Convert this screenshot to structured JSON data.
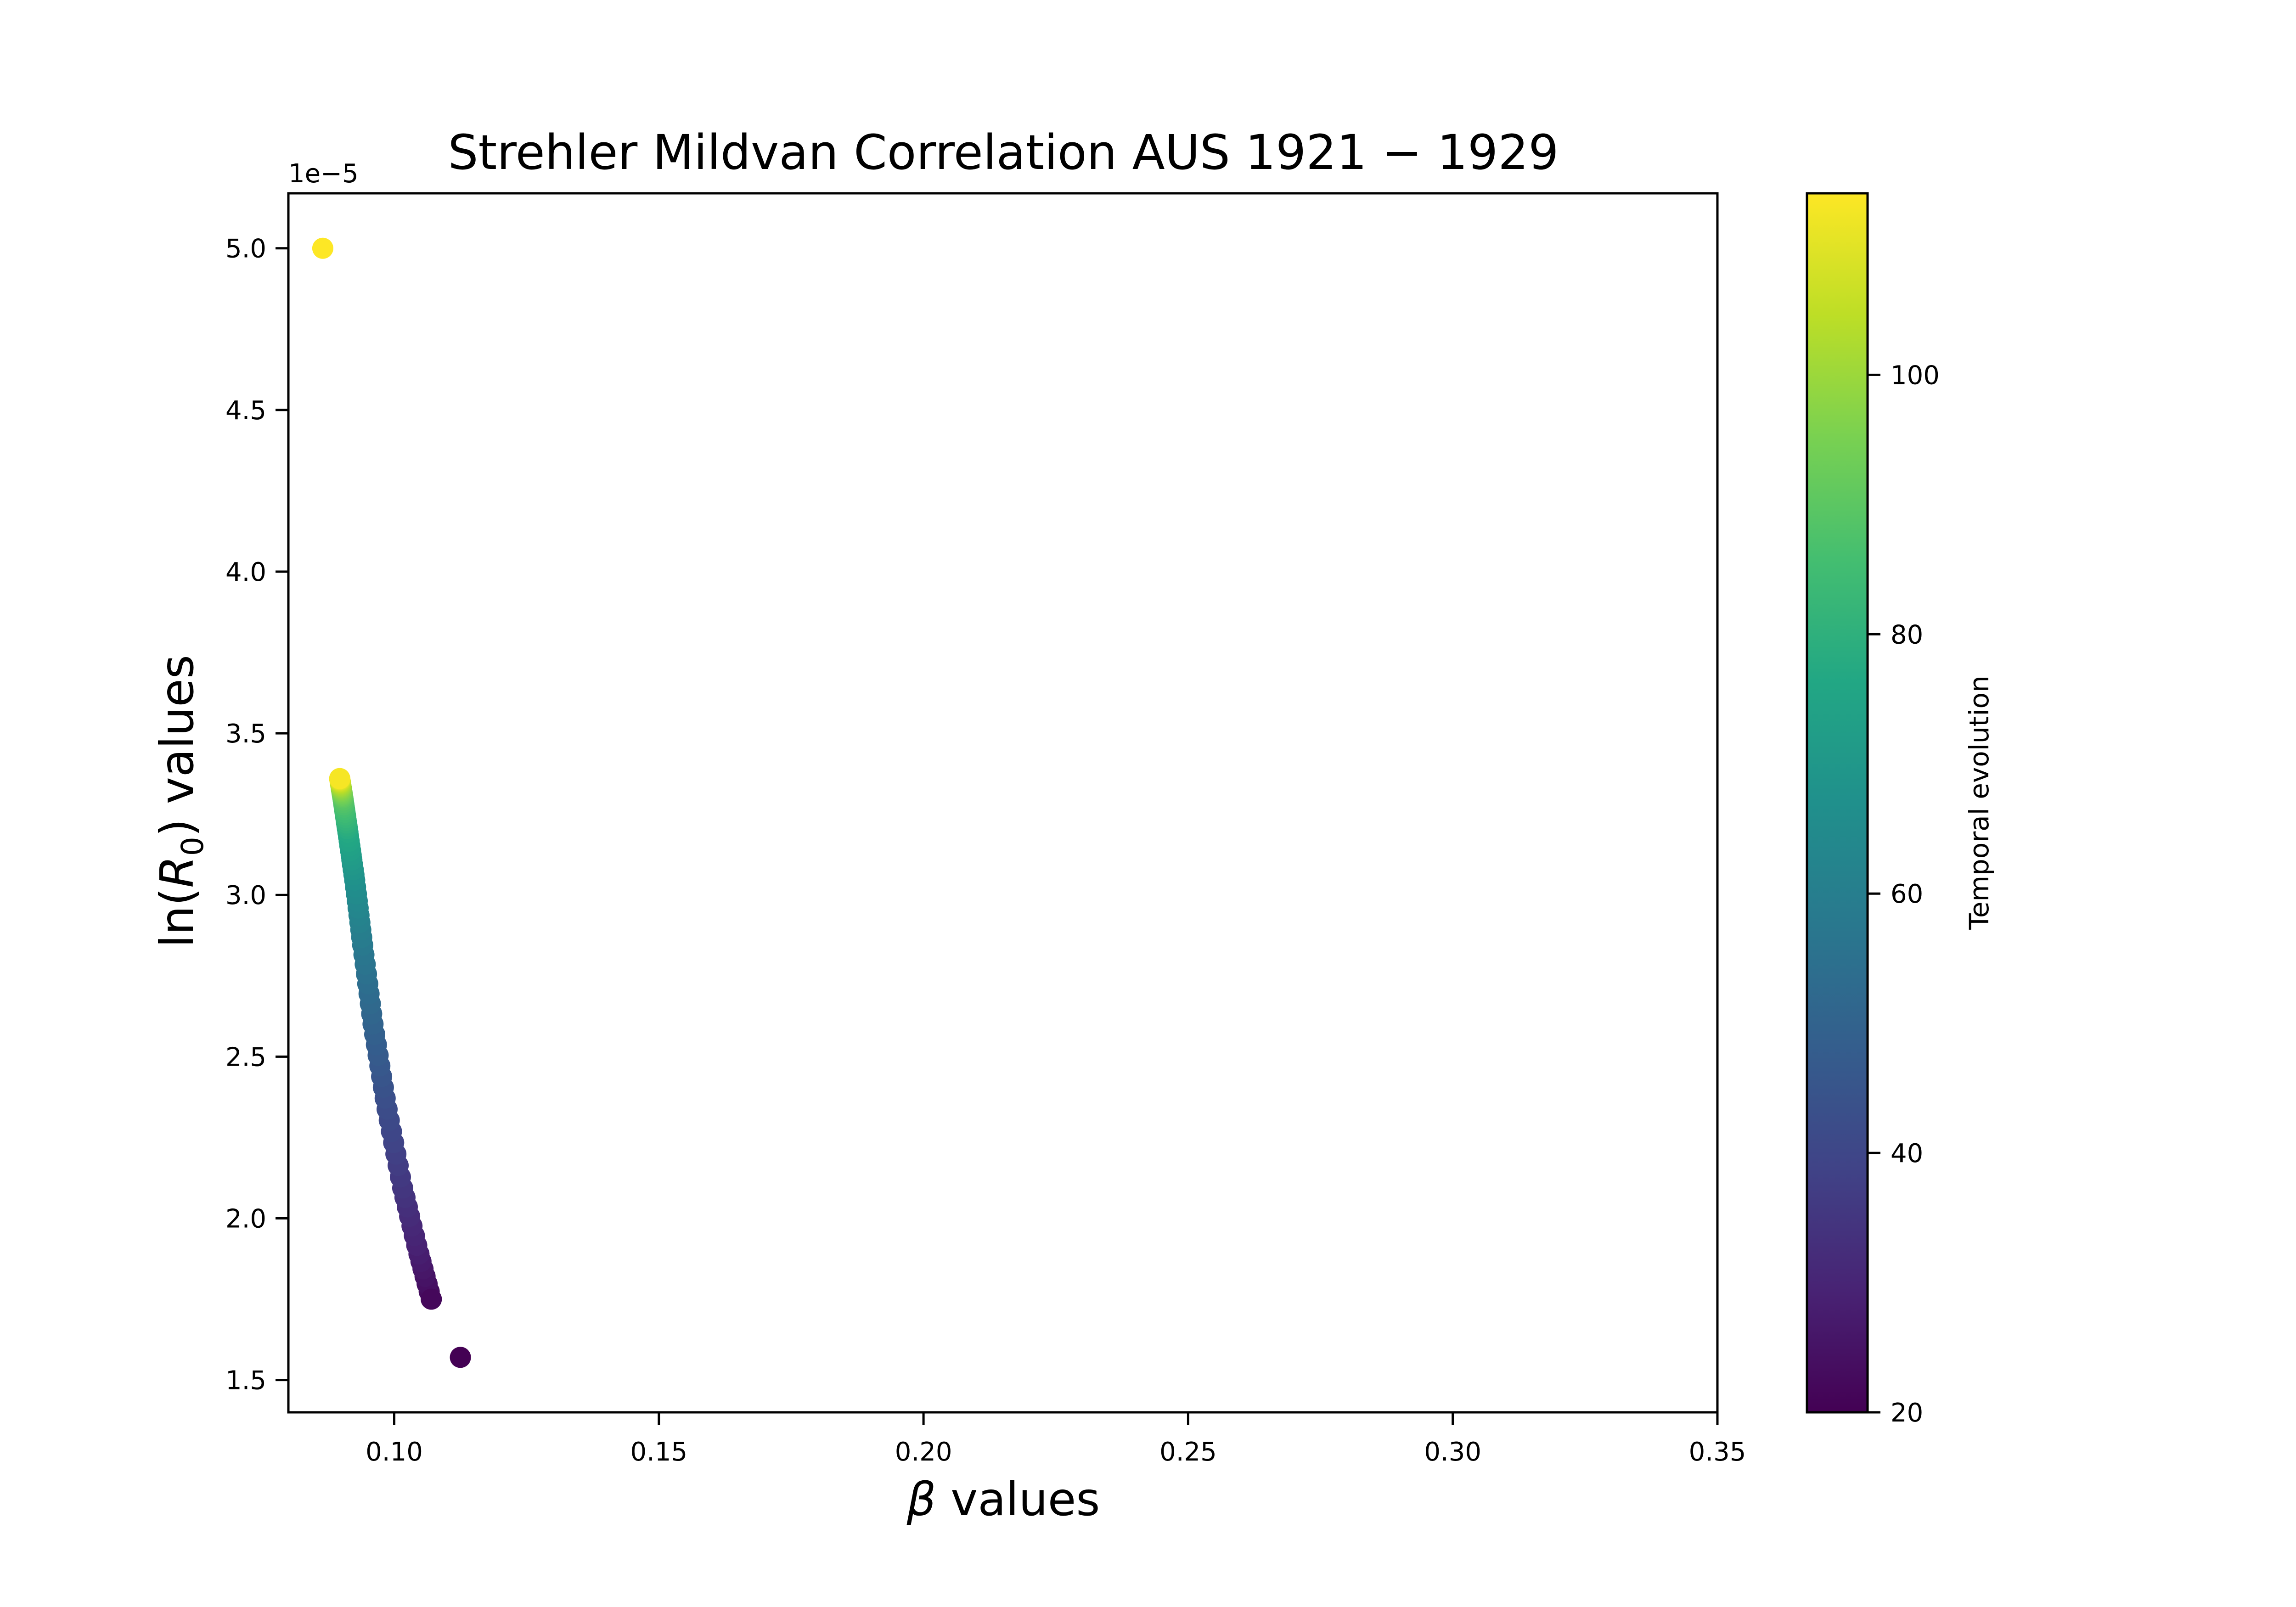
{
  "chart_data": {
    "type": "scatter",
    "title": "Strehler Mildvan Correlation AUS 1921 − 1929",
    "xlabel_symbol": "β",
    "xlabel_text": " values",
    "ylabel_prefix": "ln(",
    "ylabel_symbol": "R",
    "ylabel_subscript": "0",
    "ylabel_suffix": ") values",
    "y_offset_text": "1e−5",
    "xlim": [
      0.08,
      0.35
    ],
    "ylim": [
      1.4,
      5.17
    ],
    "x_ticks": [
      0.1,
      0.15,
      0.2,
      0.25,
      0.3,
      0.35
    ],
    "x_tick_labels": [
      "0.10",
      "0.15",
      "0.20",
      "0.25",
      "0.30",
      "0.35"
    ],
    "y_ticks": [
      1.5,
      2.0,
      2.5,
      3.0,
      3.5,
      4.0,
      4.5,
      5.0
    ],
    "y_tick_labels": [
      "1.5",
      "2.0",
      "2.5",
      "3.0",
      "3.5",
      "4.0",
      "4.5",
      "5.0"
    ],
    "colorbar": {
      "label": "Temporal evolution",
      "colormap": "viridis",
      "range": [
        20,
        114
      ],
      "ticks": [
        20,
        40,
        60,
        80,
        100
      ],
      "tick_labels": [
        "20",
        "40",
        "60",
        "80",
        "100"
      ]
    },
    "points": {
      "color_by": "age",
      "ages": [
        20,
        114
      ],
      "isolated": [
        {
          "x": 0.1125,
          "y": 1.57,
          "c": 20
        },
        {
          "x": 0.107,
          "y": 1.75,
          "c": 22
        },
        {
          "x": 0.0865,
          "y": 5.0,
          "c": 114
        }
      ],
      "curve": {
        "age_range": [
          22,
          113
        ],
        "x": [
          0.107,
          0.1045,
          0.1015,
          0.0985,
          0.096,
          0.094,
          0.0925,
          0.0912,
          0.0903,
          0.0897
        ],
        "y": [
          1.75,
          1.9,
          2.1,
          2.35,
          2.6,
          2.85,
          3.05,
          3.2,
          3.3,
          3.36
        ]
      }
    }
  }
}
